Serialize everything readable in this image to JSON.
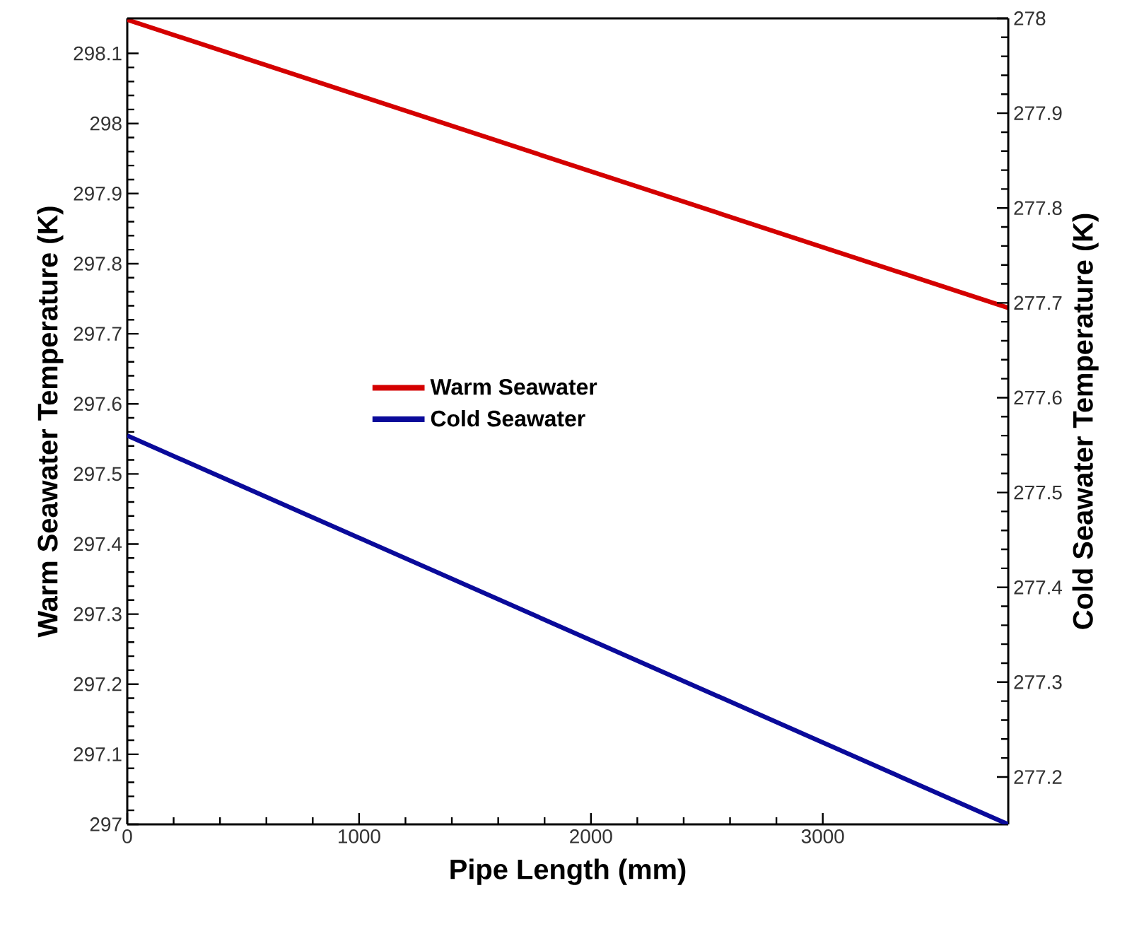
{
  "chart_data": {
    "type": "line",
    "xlabel": "Pipe Length (mm)",
    "ylabel": "Warm Seawater Temperature (K)",
    "y2label": "Cold Seawater Temperature (K)",
    "x": [
      0,
      3800
    ],
    "series": [
      {
        "name": "Warm Seawater",
        "color": "#d40000",
        "values": [
          298.148,
          297.737
        ]
      },
      {
        "name": "Cold Seawater",
        "color": "#0a0a9a",
        "values": [
          277.56,
          277.15
        ],
        "axis": "y2"
      }
    ],
    "xlim": [
      0,
      3800
    ],
    "xticks": [
      0,
      1000,
      2000,
      3000
    ],
    "ylim": [
      297,
      298.15
    ],
    "yticks": [
      297,
      297.1,
      297.2,
      297.3,
      297.4,
      297.5,
      297.6,
      297.7,
      297.8,
      297.9,
      298,
      298.1
    ],
    "y2lim": [
      277.15,
      278
    ],
    "y2ticks": [
      277.2,
      277.3,
      277.4,
      277.5,
      277.6,
      277.7,
      277.8,
      277.9,
      278
    ],
    "legend": "center",
    "grid": false,
    "line_style": "solid",
    "marker": "none"
  }
}
